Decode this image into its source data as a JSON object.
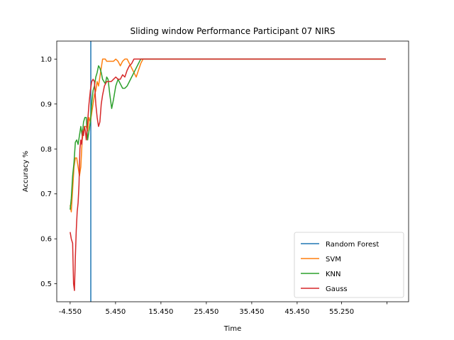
{
  "chart_data": {
    "type": "line",
    "title": "Sliding window Performance Participant 07 NIRS",
    "xlabel": "Time",
    "ylabel": "Accuracy %",
    "xlim": [
      -7.5,
      70.0
    ],
    "ylim": [
      0.46,
      1.04
    ],
    "x_ticks": [
      {
        "value": -4.55,
        "label": "-4.550"
      },
      {
        "value": 5.45,
        "label": "5.450"
      },
      {
        "value": 15.45,
        "label": "15.450"
      },
      {
        "value": 25.45,
        "label": "25.450"
      },
      {
        "value": 35.45,
        "label": "35.450"
      },
      {
        "value": 45.45,
        "label": "45.450"
      },
      {
        "value": 55.25,
        "label": "55.250"
      },
      {
        "value": 65.25,
        "label": ""
      }
    ],
    "y_ticks": [
      0.5,
      0.6,
      0.7,
      0.8,
      0.9,
      1.0
    ],
    "y_tick_labels": [
      "0.5",
      "0.6",
      "0.7",
      "0.8",
      "0.9",
      "1.0"
    ],
    "grid": false,
    "legend_position": "lower-right",
    "vline": {
      "x": 0.0,
      "color": "#1f77b4"
    },
    "series": [
      {
        "name": "Random Forest",
        "color": "#1f77b4",
        "x": [],
        "y": []
      },
      {
        "name": "SVM",
        "color": "#ff7f0e",
        "x": [
          -4.55,
          -4.3,
          -4.0,
          -3.7,
          -3.4,
          -3.1,
          -2.8,
          -2.5,
          -2.2,
          -1.9,
          -1.6,
          -1.3,
          -1.0,
          -0.7,
          -0.4,
          -0.1,
          0.2,
          0.5,
          0.8,
          1.1,
          1.4,
          1.7,
          2.0,
          2.3,
          2.6,
          2.9,
          3.2,
          3.5,
          4.0,
          4.5,
          5.0,
          5.5,
          6.0,
          6.5,
          7.0,
          7.5,
          8.0,
          8.5,
          9.0,
          9.5,
          10.0,
          10.5,
          11.0,
          11.5,
          12.0,
          13.0,
          14.0,
          20.0,
          30.0,
          40.0,
          50.0,
          60.0,
          65.0
        ],
        "y": [
          0.675,
          0.66,
          0.71,
          0.76,
          0.78,
          0.78,
          0.76,
          0.74,
          0.76,
          0.82,
          0.84,
          0.85,
          0.85,
          0.84,
          0.87,
          0.86,
          0.88,
          0.9,
          0.92,
          0.93,
          0.95,
          0.94,
          0.96,
          0.98,
          1.0,
          1.0,
          1.0,
          0.995,
          0.995,
          0.995,
          0.995,
          1.0,
          0.995,
          0.985,
          0.995,
          1.0,
          1.0,
          0.99,
          0.98,
          0.97,
          0.96,
          0.975,
          0.99,
          1.0,
          1.0,
          1.0,
          1.0,
          1.0,
          1.0,
          1.0,
          1.0,
          1.0,
          1.0
        ]
      },
      {
        "name": "KNN",
        "color": "#2ca02c",
        "x": [
          -4.55,
          -4.3,
          -4.0,
          -3.7,
          -3.4,
          -3.1,
          -2.8,
          -2.5,
          -2.2,
          -1.9,
          -1.6,
          -1.3,
          -1.0,
          -0.7,
          -0.4,
          -0.1,
          0.2,
          0.5,
          0.8,
          1.1,
          1.4,
          1.7,
          2.0,
          2.3,
          2.6,
          2.9,
          3.2,
          3.5,
          3.8,
          4.2,
          4.6,
          5.0,
          5.5,
          6.0,
          6.5,
          7.0,
          7.5,
          8.0,
          8.5,
          9.0,
          9.5,
          10.0,
          10.5,
          11.0,
          11.5,
          12.0,
          13.0,
          14.0,
          20.0,
          30.0,
          40.0,
          50.0,
          60.0,
          65.0
        ],
        "y": [
          0.665,
          0.69,
          0.74,
          0.77,
          0.815,
          0.82,
          0.81,
          0.83,
          0.85,
          0.83,
          0.86,
          0.87,
          0.87,
          0.82,
          0.84,
          0.86,
          0.9,
          0.93,
          0.94,
          0.96,
          0.97,
          0.985,
          0.98,
          0.97,
          0.955,
          0.95,
          0.945,
          0.96,
          0.955,
          0.92,
          0.89,
          0.91,
          0.94,
          0.955,
          0.945,
          0.935,
          0.935,
          0.94,
          0.95,
          0.96,
          0.97,
          0.98,
          0.99,
          1.0,
          1.0,
          1.0,
          1.0,
          1.0,
          1.0,
          1.0,
          1.0,
          1.0,
          1.0,
          1.0
        ]
      },
      {
        "name": "Gauss",
        "color": "#d62728",
        "x": [
          -4.55,
          -4.3,
          -4.0,
          -3.8,
          -3.6,
          -3.4,
          -3.2,
          -3.0,
          -2.8,
          -2.6,
          -2.4,
          -2.2,
          -2.0,
          -1.8,
          -1.6,
          -1.4,
          -1.2,
          -1.0,
          -0.7,
          -0.4,
          -0.1,
          0.2,
          0.5,
          0.8,
          1.1,
          1.4,
          1.7,
          2.0,
          2.3,
          2.6,
          3.0,
          3.5,
          4.0,
          4.5,
          5.0,
          5.5,
          6.0,
          6.5,
          7.0,
          7.5,
          8.0,
          8.5,
          9.0,
          9.5,
          10.0,
          11.0,
          12.0,
          13.0,
          14.0,
          20.0,
          30.0,
          40.0,
          50.0,
          60.0,
          65.0
        ],
        "y": [
          0.615,
          0.6,
          0.59,
          0.5,
          0.485,
          0.56,
          0.62,
          0.66,
          0.68,
          0.72,
          0.8,
          0.82,
          0.81,
          0.84,
          0.83,
          0.85,
          0.84,
          0.82,
          0.86,
          0.9,
          0.93,
          0.95,
          0.955,
          0.95,
          0.9,
          0.87,
          0.85,
          0.86,
          0.9,
          0.92,
          0.94,
          0.95,
          0.95,
          0.95,
          0.955,
          0.96,
          0.955,
          0.955,
          0.965,
          0.96,
          0.975,
          0.985,
          0.99,
          1.0,
          1.0,
          1.0,
          1.0,
          1.0,
          1.0,
          1.0,
          1.0,
          1.0,
          1.0,
          1.0,
          1.0
        ]
      }
    ]
  }
}
